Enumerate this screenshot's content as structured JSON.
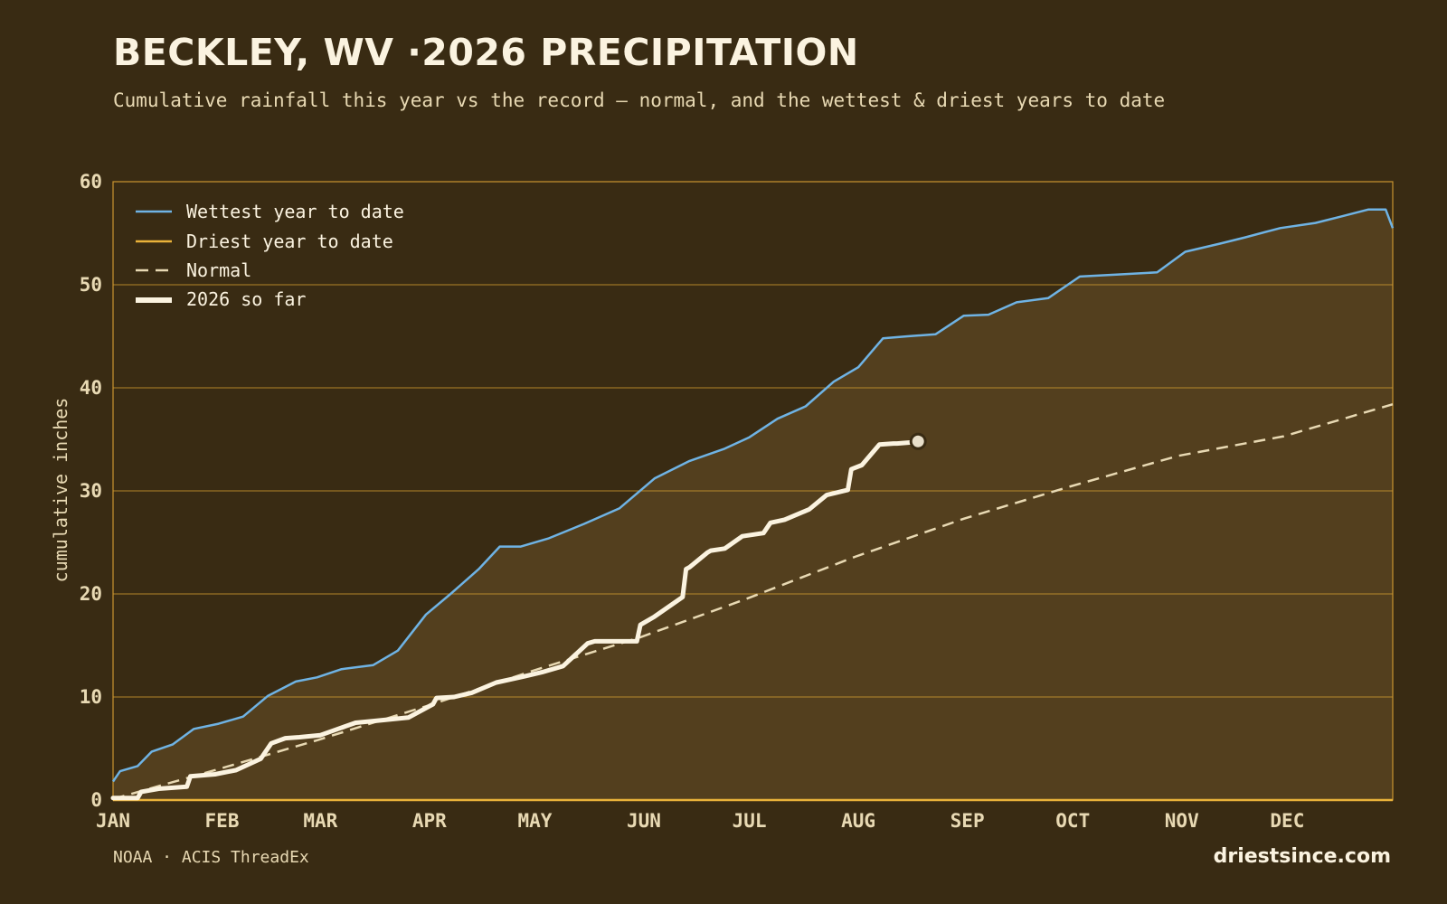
{
  "header": {
    "title": "BECKLEY, WV ·2026 PRECIPITATION",
    "subtitle": "Cumulative rainfall this year vs the record — normal, and the wettest & driest years to date"
  },
  "footer": {
    "source": "NOAA · ACIS ThreadEx",
    "brand": "driestsince.com"
  },
  "colors": {
    "background": "#392b13",
    "band_fill": "#533f1e",
    "grid": "#c9952f",
    "wettest": "#6fb3e4",
    "driest": "#e9b23a",
    "normal": "#e8d9b3",
    "current": "#fbf3e0"
  },
  "chart_data": {
    "type": "line",
    "title": "BECKLEY, WV ·2026 PRECIPITATION",
    "xlabel": "",
    "ylabel": "cumulative inches",
    "xlim": [
      "JAN 1",
      "DEC 31"
    ],
    "ylim": [
      0,
      60
    ],
    "yticks": [
      0,
      10,
      20,
      30,
      40,
      50,
      60
    ],
    "xticks": [
      "JAN",
      "FEB",
      "MAR",
      "APR",
      "MAY",
      "JUN",
      "JUL",
      "AUG",
      "SEP",
      "OCT",
      "NOV",
      "DEC"
    ],
    "grid": "horizontal",
    "legend": "top-left",
    "series": [
      {
        "name": "Wettest year to date",
        "style": "solid-thin",
        "day": [
          1,
          3,
          8,
          12,
          18,
          24,
          31,
          38,
          45,
          53,
          59,
          66,
          75,
          82,
          90,
          97,
          105,
          111,
          117,
          125,
          135,
          145,
          155,
          165,
          175,
          182,
          190,
          198,
          206,
          213,
          220,
          227,
          235,
          243,
          250,
          258,
          267,
          276,
          287,
          298,
          306,
          316,
          323,
          333,
          343,
          350,
          358,
          363,
          365
        ],
        "values": [
          1.8,
          2.8,
          3.3,
          4.7,
          5.4,
          6.9,
          7.4,
          8.1,
          10.1,
          11.5,
          11.9,
          12.7,
          13.1,
          14.5,
          18.0,
          20.0,
          22.4,
          24.6,
          24.6,
          25.4,
          26.8,
          28.3,
          31.2,
          32.9,
          34.1,
          35.2,
          37.0,
          38.2,
          40.6,
          42.0,
          44.8,
          45.0,
          45.2,
          47.0,
          47.1,
          48.3,
          48.7,
          50.8,
          51.0,
          51.2,
          53.2,
          54.0,
          54.6,
          55.5,
          56.0,
          56.6,
          57.3,
          57.3,
          55.5
        ]
      },
      {
        "name": "Driest year to date",
        "style": "solid-thin-band-floor",
        "day": [
          1,
          365
        ],
        "values": [
          0,
          0
        ]
      },
      {
        "name": "Normal",
        "style": "dashed",
        "day": [
          1,
          31,
          59,
          90,
          120,
          151,
          181,
          212,
          243,
          273,
          304,
          334,
          365
        ],
        "values": [
          0.1,
          3.0,
          5.8,
          9.1,
          12.5,
          15.8,
          19.5,
          23.6,
          27.3,
          30.4,
          33.4,
          35.3,
          38.4
        ]
      },
      {
        "name": "2026 so far",
        "style": "solid-thick",
        "day": [
          1,
          8,
          9,
          14,
          22,
          23,
          30,
          36,
          43,
          46,
          50,
          54,
          60,
          65,
          70,
          76,
          85,
          92,
          93,
          98,
          103,
          110,
          118,
          123,
          129,
          136,
          138,
          140,
          150,
          151,
          155,
          163,
          164,
          165,
          170,
          171,
          175,
          180,
          186,
          188,
          192,
          199,
          204,
          210,
          211,
          214,
          219,
          223,
          224,
          228,
          230
        ],
        "values": [
          0.2,
          0.2,
          0.8,
          1.1,
          1.3,
          2.3,
          2.5,
          2.9,
          4.0,
          5.5,
          6.0,
          6.1,
          6.3,
          6.9,
          7.5,
          7.7,
          8.0,
          9.3,
          9.9,
          10.0,
          10.4,
          11.4,
          12.0,
          12.4,
          13.0,
          15.2,
          15.4,
          15.4,
          15.4,
          17.0,
          17.8,
          19.7,
          22.4,
          22.6,
          24.0,
          24.2,
          24.4,
          25.6,
          25.9,
          26.9,
          27.2,
          28.2,
          29.6,
          30.1,
          32.1,
          32.5,
          34.5,
          34.6,
          34.6,
          34.7,
          34.8
        ]
      }
    ],
    "current_point": {
      "day": 230,
      "value": 34.8
    }
  }
}
